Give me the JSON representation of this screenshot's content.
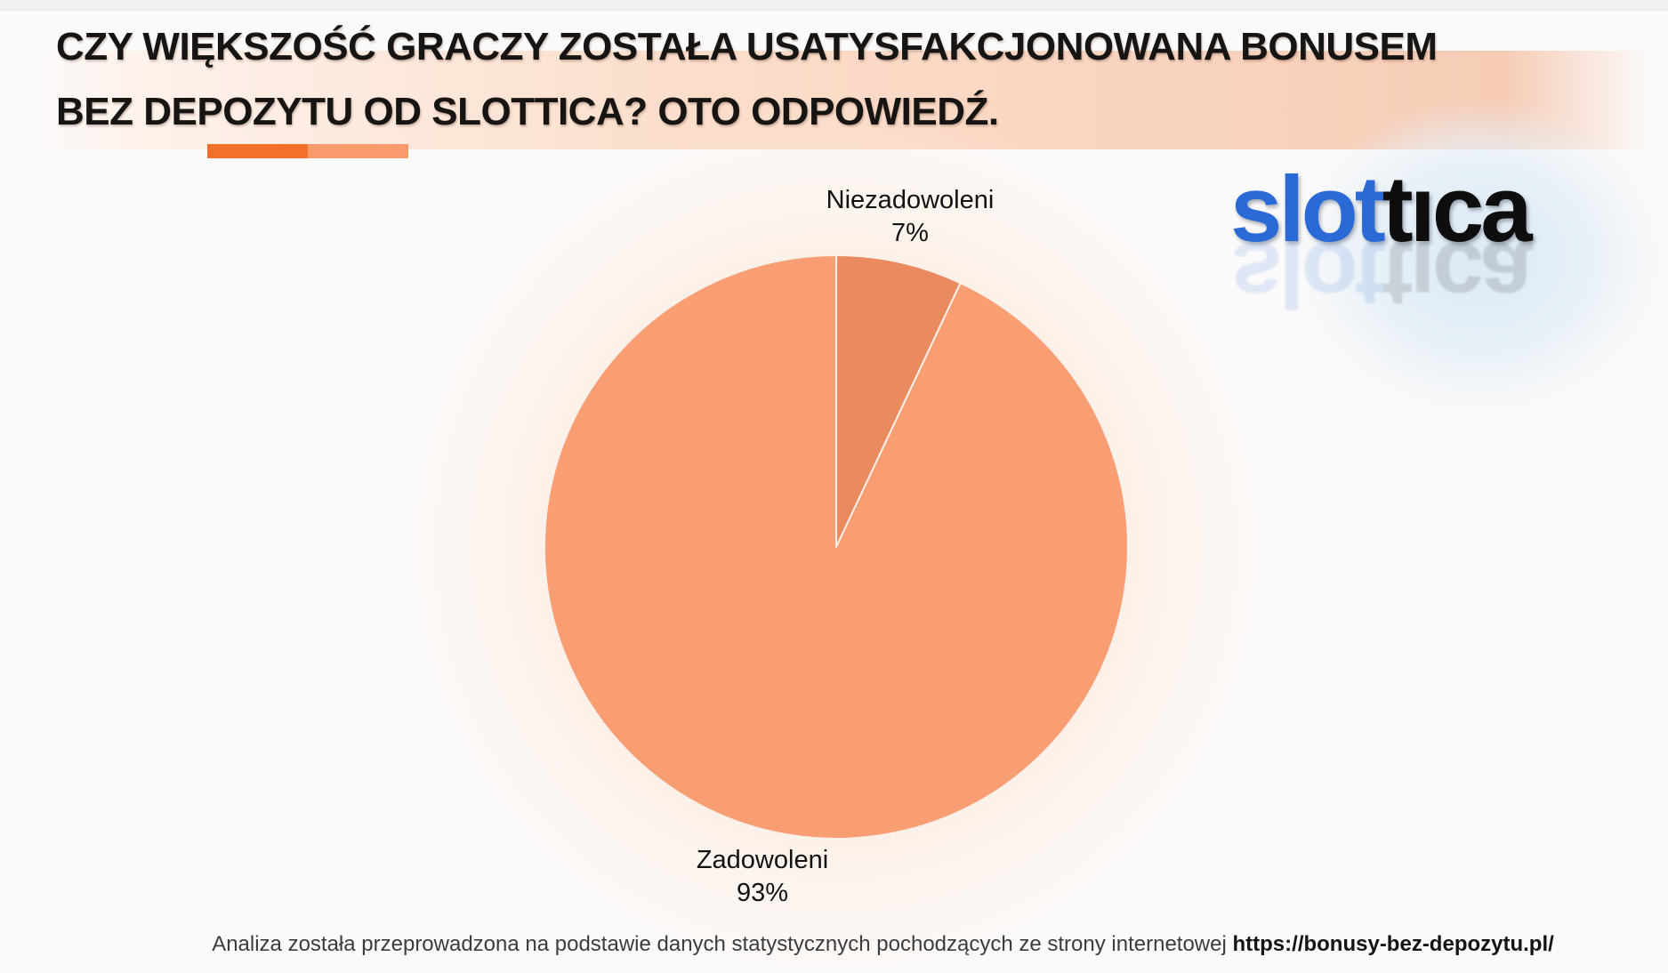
{
  "header": {
    "title_line1": "CZY WIĘKSZOŚĆ GRACZY ZOSTAŁA USATYSFAKCJONOWANA BONUSEM",
    "title_line2": "BEZ DEPOZYTU OD SLOTTICA? OTO ODPOWIEDŹ.",
    "accent_bar_colors": [
      "#f3702a",
      "#f89a6c"
    ]
  },
  "logo": {
    "part1": "slot",
    "part2": "tıca",
    "part1_color": "#2a6ad6",
    "part2_color": "#0e0e0e"
  },
  "chart_data": {
    "type": "pie",
    "title": "Czy większość graczy została usatysfakcjonowana bonusem bez depozytu od Slottica?",
    "start_angle_deg": 0,
    "direction": "clockwise",
    "slices": [
      {
        "label": "Niezadowoleni",
        "value": 7,
        "display": "7%",
        "color": "#e98a5f"
      },
      {
        "label": "Zadowoleni",
        "value": 93,
        "display": "93%",
        "color": "#f99d72"
      }
    ],
    "legend": "none",
    "labels_position": "outside"
  },
  "footer": {
    "text": "Analiza została przeprowadzona na podstawie danych statystycznych pochodzących ze strony internetowej",
    "link": "https://bonusy-bez-depozytu.pl/"
  },
  "colors": {
    "background": "#fbfafa",
    "band_peach": "#f7ceb9",
    "top_strip": "#f2f0ef",
    "pie_glow": "#fdeee3",
    "logo_glow": "#e0ebf5"
  }
}
